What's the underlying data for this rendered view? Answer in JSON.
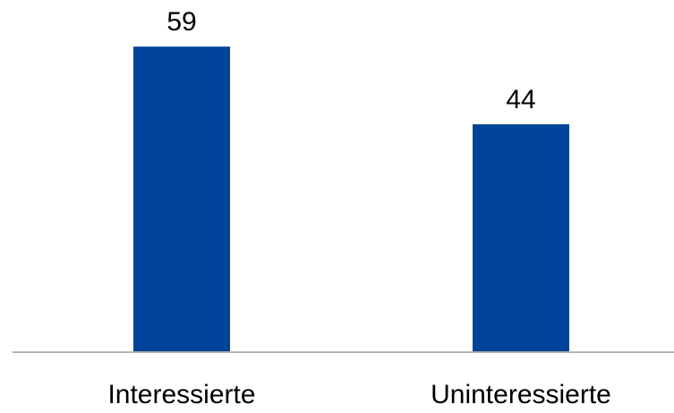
{
  "chart_data": {
    "type": "bar",
    "categories": [
      "Interessierte",
      "Uninteressierte"
    ],
    "values": [
      59,
      44
    ],
    "data_labels": [
      "59",
      "44"
    ],
    "ylim": [
      0,
      68
    ],
    "grid": false,
    "legend": "none",
    "bar_color": "#004499",
    "axis_color": "#b3b3b3"
  }
}
